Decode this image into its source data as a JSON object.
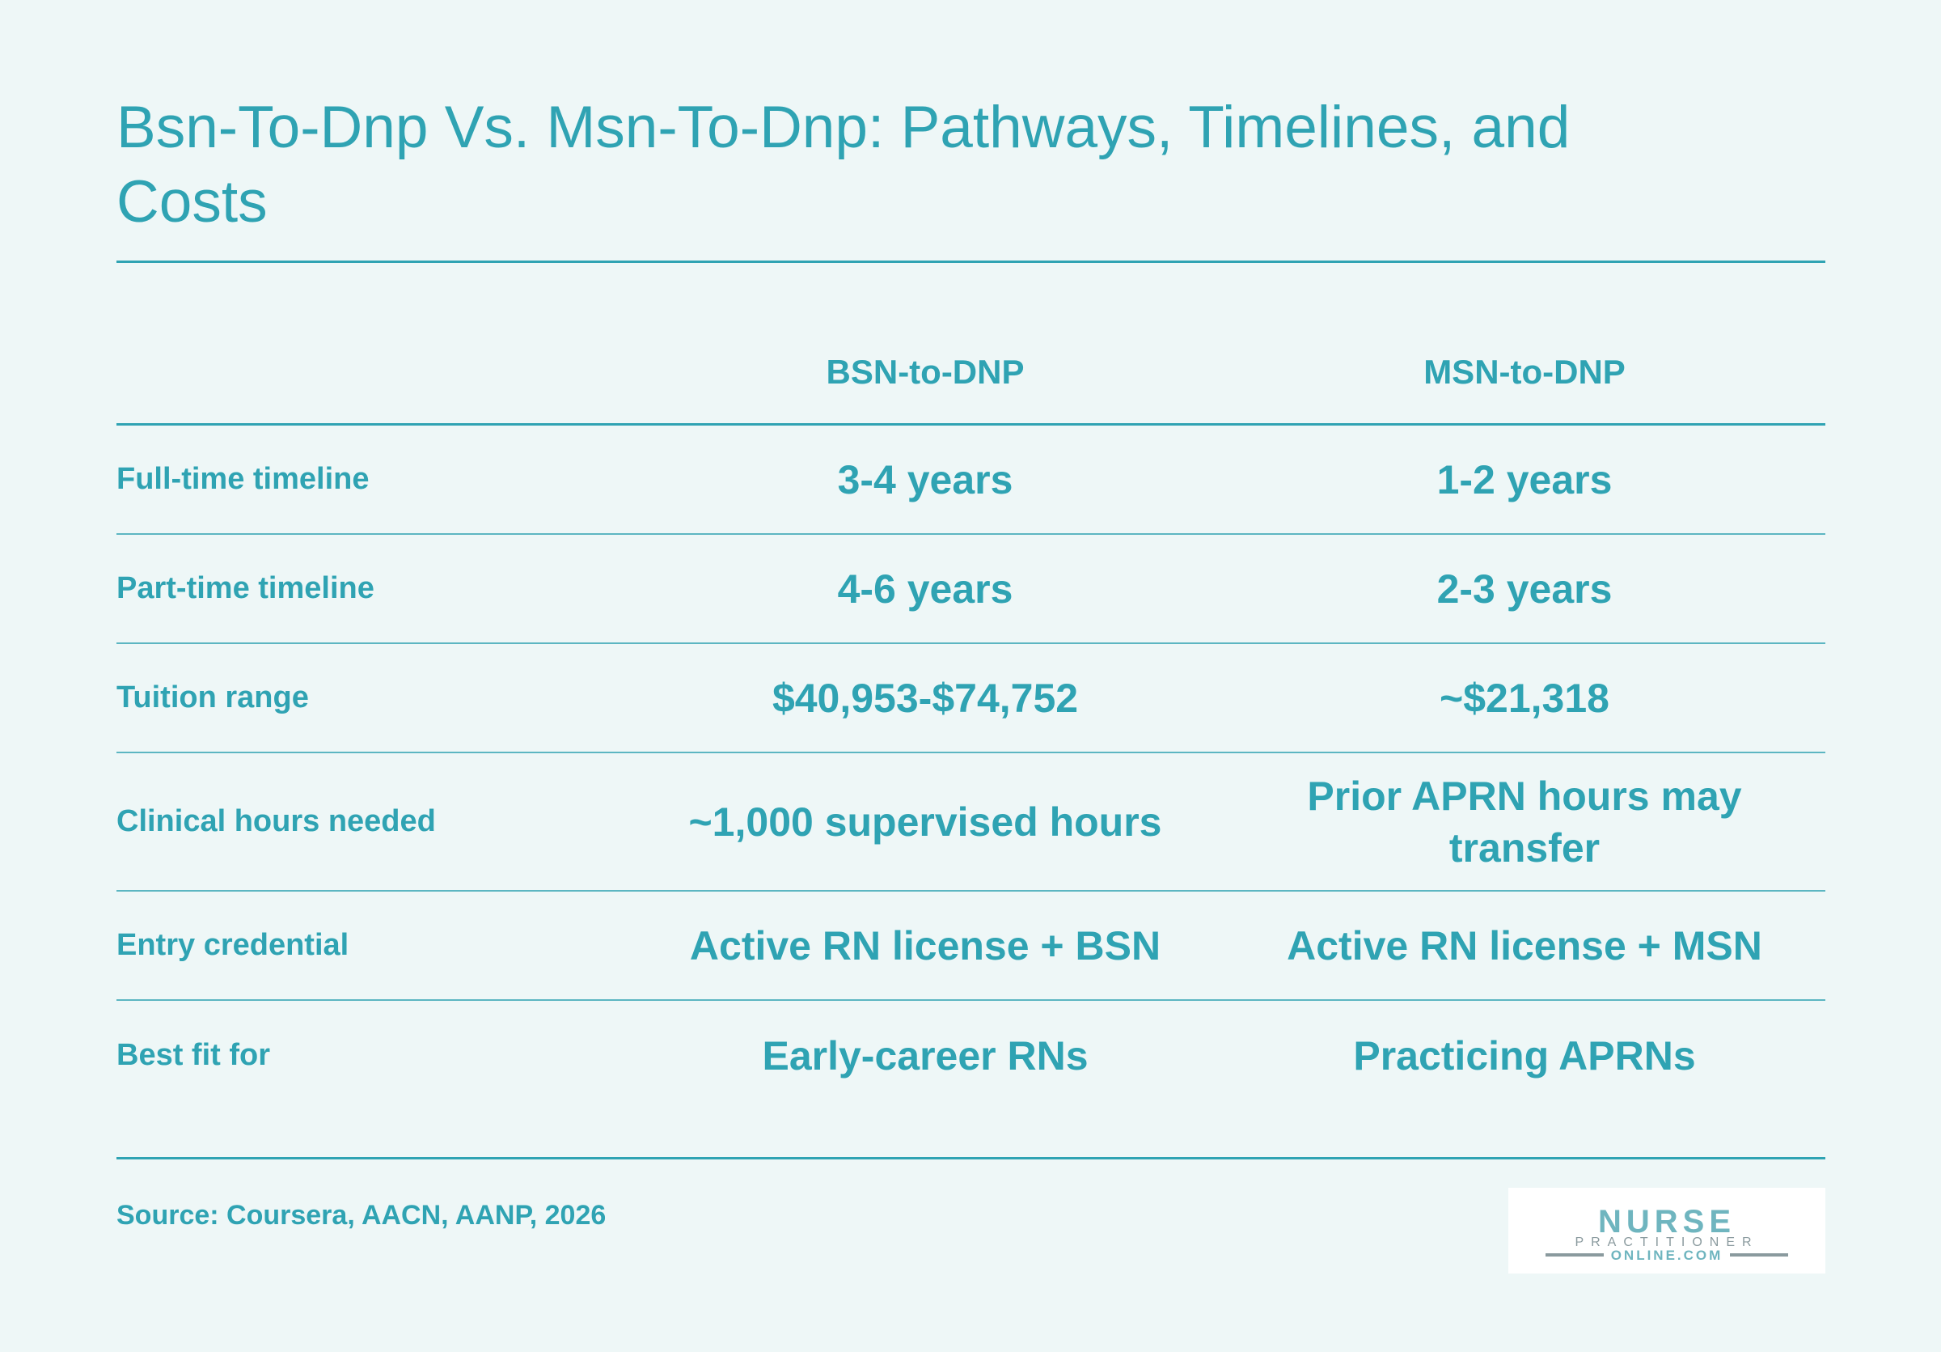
{
  "title": "Bsn-To-Dnp Vs. Msn-To-Dnp: Pathways, Timelines, and Costs",
  "table": {
    "columns": [
      "BSN-to-DNP",
      "MSN-to-DNP"
    ],
    "rows": [
      {
        "label": "Full-time timeline",
        "bsn": "3-4 years",
        "msn": "1-2 years"
      },
      {
        "label": "Part-time timeline",
        "bsn": "4-6 years",
        "msn": "2-3 years"
      },
      {
        "label": "Tuition range",
        "bsn": "$40,953-$74,752",
        "msn": "~$21,318"
      },
      {
        "label": "Clinical hours needed",
        "bsn": "~1,000 supervised hours",
        "msn": "Prior APRN hours may transfer"
      },
      {
        "label": "Entry credential",
        "bsn": "Active RN license + BSN",
        "msn": "Active RN license + MSN"
      },
      {
        "label": "Best fit for",
        "bsn": "Early-career RNs",
        "msn": "Practicing APRNs"
      }
    ]
  },
  "source": "Source: Coursera, AACN, AANP, 2026",
  "logo": {
    "line1": "NURSE",
    "line2": "PRACTITIONER",
    "line3": "ONLINE.COM",
    "colors": {
      "teal": "#6fb5bf",
      "gray": "#8a9a9e"
    }
  },
  "colors": {
    "background": "#eef7f7",
    "accent": "#2fa3b3"
  }
}
